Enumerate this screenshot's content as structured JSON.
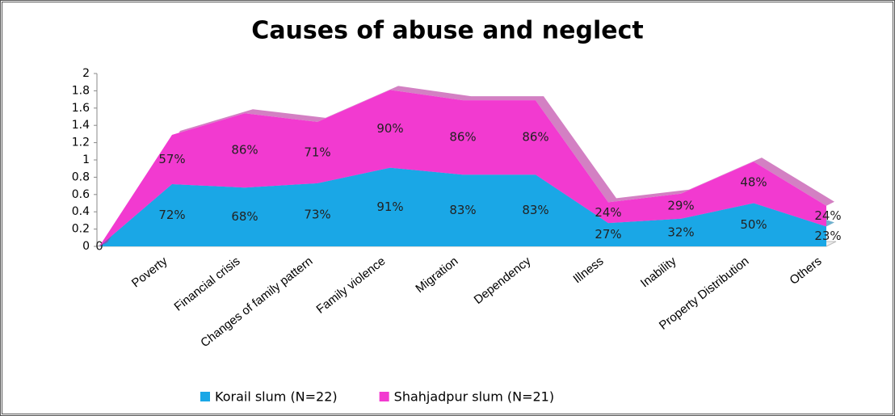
{
  "chart_data": {
    "type": "stacked-area",
    "title": "Causes of abuse and neglect",
    "categories": [
      null,
      "Poverty",
      "Financial crisis",
      "Changes of family pattern",
      "Family violence",
      "Migration",
      "Dependency",
      "Illness",
      "Inability",
      "Property Distribution",
      "Others"
    ],
    "series": [
      {
        "name": "Korail slum  (N=22)",
        "color": "#1aa7e6",
        "values": [
          0,
          0.72,
          0.68,
          0.73,
          0.91,
          0.83,
          0.83,
          0.27,
          0.32,
          0.5,
          0.23
        ],
        "value_labels": [
          "0",
          "72%",
          "68%",
          "73%",
          "91%",
          "83%",
          "83%",
          "27%",
          "32%",
          "50%",
          "23%"
        ]
      },
      {
        "name": "Shahjadpur slum (N=21)",
        "color": "#f23ad0",
        "values": [
          0,
          0.57,
          0.86,
          0.71,
          0.9,
          0.86,
          0.86,
          0.24,
          0.29,
          0.48,
          0.24
        ],
        "value_labels": [
          null,
          "57%",
          "86%",
          "71%",
          "90%",
          "86%",
          "86%",
          "24%",
          "29%",
          "48%",
          "24%"
        ]
      }
    ],
    "ylim": [
      0,
      2
    ],
    "yticks": [
      0,
      0.2,
      0.4,
      0.6,
      0.8,
      1,
      1.2,
      1.4,
      1.6,
      1.8,
      2
    ],
    "legend": "bottom"
  }
}
